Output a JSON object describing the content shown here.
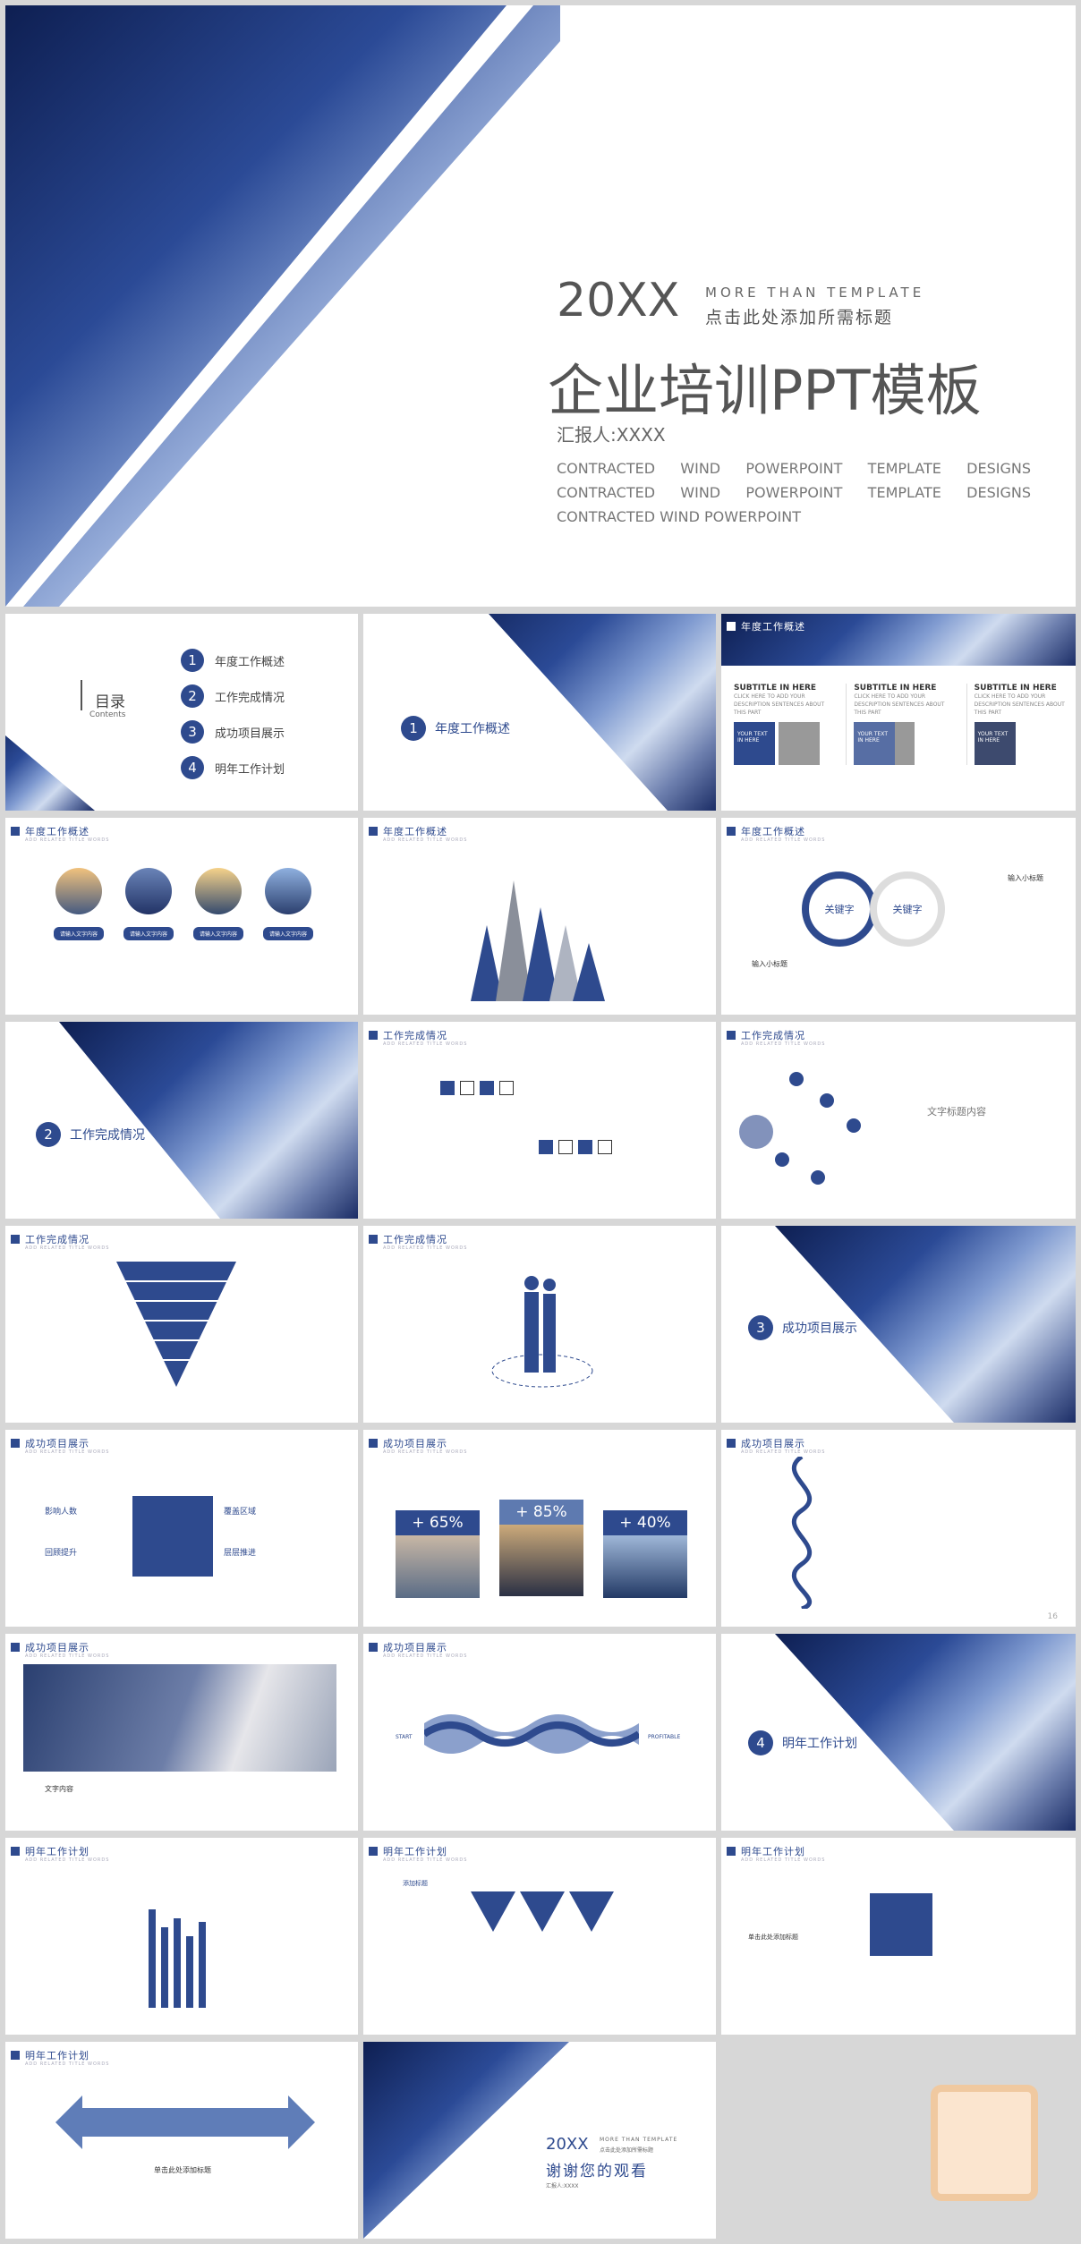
{
  "hero": {
    "year": "20XX",
    "more": "MORE THAN TEMPLATE",
    "subtitle": "点击此处添加所需标题",
    "title": "企业培训PPT模板",
    "reporter": "汇报人:XXXX",
    "desc": "CONTRACTED WIND POWERPOINT TEMPLATE DESIGNS CONTRACTED WIND POWERPOINT TEMPLATE DESIGNS CONTRACTED WIND POWERPOINT"
  },
  "toc": {
    "title": "目录",
    "sub": "Contents",
    "items": [
      {
        "n": "1",
        "label": "年度工作概述"
      },
      {
        "n": "2",
        "label": "工作完成情况"
      },
      {
        "n": "3",
        "label": "成功项目展示"
      },
      {
        "n": "4",
        "label": "明年工作计划"
      }
    ]
  },
  "sections": [
    {
      "n": "1",
      "label": "年度工作概述"
    },
    {
      "n": "2",
      "label": "工作完成情况"
    },
    {
      "n": "3",
      "label": "成功项目展示"
    },
    {
      "n": "4",
      "label": "明年工作计划"
    }
  ],
  "headers": {
    "annual": "年度工作概述",
    "done": "工作完成情况",
    "success": "成功项目展示",
    "plan": "明年工作计划",
    "sub": "ADD RELATED TITLE WORDS"
  },
  "subtitles": {
    "cols": [
      {
        "h": "SUBTITLE IN HERE",
        "b": "CLICK HERE TO ADD YOUR DESCRIPTION SENTENCES ABOUT THIS PART",
        "box": "YOUR TEXT IN HERE"
      },
      {
        "h": "SUBTITLE IN HERE",
        "b": "CLICK HERE TO ADD YOUR DESCRIPTION SENTENCES ABOUT THIS PART",
        "box": "YOUR TEXT IN HERE"
      },
      {
        "h": "SUBTITLE IN HERE",
        "b": "CLICK HERE TO ADD YOUR DESCRIPTION SENTENCES ABOUT THIS PART",
        "box": "YOUR TEXT IN HERE"
      }
    ]
  },
  "circles": {
    "label": "请输入文字内容"
  },
  "keywords": {
    "k1": "关键字",
    "k2": "关键字",
    "in1": "输入小标题",
    "in2": "输入小标题"
  },
  "percent": {
    "p1": "+ 65%",
    "p2": "+ 85%",
    "p3": "+ 40%"
  },
  "puzzle": {
    "l1": "影响人数",
    "l2": "回顾提升",
    "r1": "覆盖区域",
    "r2": "层层推进"
  },
  "textcontent": "文字标题内容",
  "wordinput": "文字内容",
  "progress": {
    "start": "START",
    "end": "PROFITABLE"
  },
  "slide16": "16",
  "addtitle": "添加标题",
  "clicktitle": "单击此处添加标题",
  "thanks": {
    "year": "20XX",
    "more": "MORE THAN TEMPLATE",
    "sub": "点击此处添加所需标题",
    "title": "谢谢您的观看",
    "reporter": "汇报人:XXXX"
  }
}
